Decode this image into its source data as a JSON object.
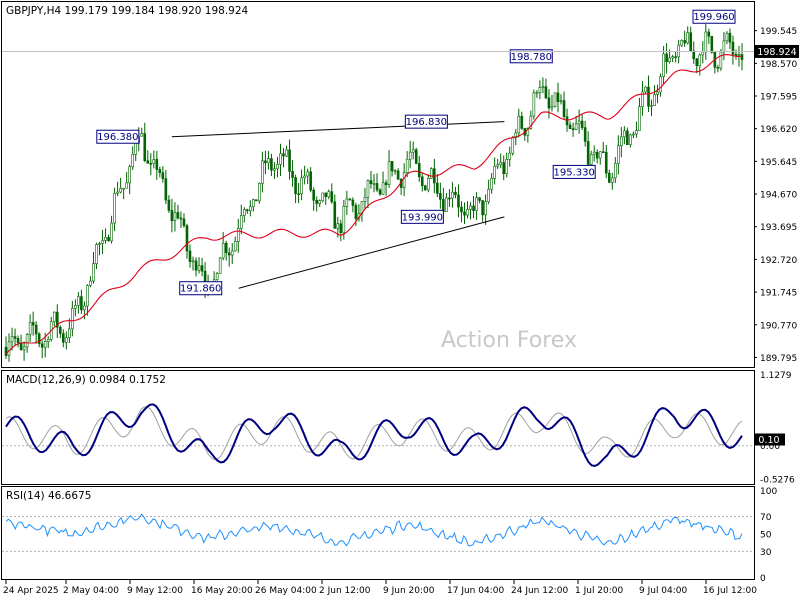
{
  "chart_data": [
    {
      "type": "candlestick",
      "panel": "price",
      "header_text": "GBPJPY,H4  199.179 199.184 198.920 198.924",
      "y_range": [
        189.48,
        200.4
      ],
      "y_ticks": [
        "199.545",
        "198.570",
        "197.595",
        "196.620",
        "195.645",
        "194.670",
        "193.695",
        "192.720",
        "191.745",
        "190.770",
        "189.795"
      ],
      "y_tick_values": [
        199.545,
        198.57,
        197.595,
        196.62,
        195.645,
        194.67,
        193.695,
        192.72,
        191.745,
        190.77,
        189.795
      ],
      "last_price": "198.924",
      "last_price_value": 198.924,
      "x_labels": [
        "24 Apr 2025",
        "2 May 04:00",
        "9 May 12:00",
        "16 May 20:00",
        "26 May 04:00",
        "2 Jun 12:00",
        "9 Jun 20:00",
        "17 Jun 04:00",
        "24 Jun 12:00",
        "1 Jul 20:00",
        "9 Jul 04:00",
        "16 Jul 12:00"
      ],
      "watermark": "Action Forex",
      "colors": {
        "candle": "#006400",
        "moving_average": "#e0001b",
        "trendline": "#000000",
        "label_border": "#000080",
        "label_text": "#000080"
      },
      "moving_average_anchors": [
        {
          "x": "24 Apr 2025",
          "y": 189.9
        },
        {
          "x": "2 May 04:00",
          "y": 190.9
        },
        {
          "x": "9 May 12:00",
          "y": 192.4
        },
        {
          "x": "16 May 20:00",
          "y": 193.4
        },
        {
          "x": "26 May 04:00",
          "y": 193.5
        },
        {
          "x": "2 Jun 12:00",
          "y": 193.5
        },
        {
          "x": "9 Jun 20:00",
          "y": 195.2
        },
        {
          "x": "17 Jun 04:00",
          "y": 195.5
        },
        {
          "x": "24 Jun 12:00",
          "y": 197.0
        },
        {
          "x": "1 Jul 20:00",
          "y": 197.0
        },
        {
          "x": "9 Jul 04:00",
          "y": 198.2
        },
        {
          "x": "16 Jul 12:00",
          "y": 198.9
        }
      ],
      "price_anchors": [
        {
          "x": "24 Apr 2025",
          "y": 190.1
        },
        {
          "x": "2 May 04:00",
          "y": 190.8
        },
        {
          "x": "9 May 12:00",
          "y": 196.38
        },
        {
          "x": "16 May 20:00",
          "y": 191.86
        },
        {
          "x": "26 May 04:00",
          "y": 195.8
        },
        {
          "x": "2 Jun 12:00",
          "y": 193.9
        },
        {
          "x": "9 Jun 20:00",
          "y": 195.6
        },
        {
          "x": "17 Jun 04:00",
          "y": 193.99
        },
        {
          "x": "24 Jun 12:00",
          "y": 197.8
        },
        {
          "x": "1 Jul 20:00",
          "y": 195.33
        },
        {
          "x": "9 Jul 04:00",
          "y": 199.0
        },
        {
          "x": "16 Jul 12:00",
          "y": 198.92
        }
      ],
      "pivot_labels": [
        {
          "text": "196.380",
          "value": 196.38,
          "x": "9 May 12:00"
        },
        {
          "text": "191.860",
          "value": 191.86,
          "x": "16 May 20:00"
        },
        {
          "text": "196.830",
          "value": 196.83,
          "x": "17 Jun 04:00"
        },
        {
          "text": "193.990",
          "value": 193.99,
          "x": "17 Jun 04:00"
        },
        {
          "text": "198.780",
          "value": 198.78,
          "x": "24 Jun 12:00"
        },
        {
          "text": "195.330",
          "value": 195.33,
          "x": "1 Jul 20:00"
        },
        {
          "text": "199.960",
          "value": 199.96,
          "x": "16 Jul 12:00"
        }
      ],
      "trendlines": [
        {
          "from": {
            "x": "9 May 12:00",
            "y": 196.38
          },
          "to": {
            "x": "17 Jun 04:00",
            "y": 196.83
          }
        },
        {
          "from": {
            "x": "16 May 20:00",
            "y": 191.86
          },
          "to": {
            "x": "17 Jun 04:00",
            "y": 193.99
          }
        }
      ]
    },
    {
      "type": "line",
      "panel": "macd",
      "header_text": "MACD(12,26,9) 0.0984 0.1752",
      "y_range": [
        -0.62,
        1.18
      ],
      "y_ticks": [
        "1.1279",
        "0.00",
        "-0.5276"
      ],
      "y_tick_values": [
        1.1279,
        0.0,
        -0.5276
      ],
      "value_badge": "0.10",
      "series": [
        {
          "color": "#000080",
          "values_at_x_labels": [
            0.3,
            -0.05,
            0.6,
            -0.2,
            0.45,
            -0.15,
            0.35,
            -0.05,
            0.55,
            -0.3,
            0.55,
            0.1
          ]
        },
        {
          "color": "#a0a0a0",
          "values_at_x_labels": [
            0.25,
            0.05,
            0.45,
            -0.05,
            0.3,
            -0.05,
            0.25,
            0.05,
            0.45,
            -0.1,
            0.35,
            0.18
          ]
        }
      ]
    },
    {
      "type": "line",
      "panel": "rsi",
      "header_text": "RSI(14) 46.6675",
      "y_range": [
        -3,
        104
      ],
      "y_ticks": [
        "100",
        "70",
        "50",
        "30",
        "0"
      ],
      "y_tick_values": [
        100,
        70,
        50,
        30,
        0
      ],
      "levels": [
        70,
        30
      ],
      "series": [
        {
          "color": "#1e90ff",
          "values_at_x_labels": [
            63,
            50,
            70,
            45,
            60,
            40,
            62,
            38,
            66,
            38,
            68,
            46.7
          ]
        }
      ]
    }
  ]
}
